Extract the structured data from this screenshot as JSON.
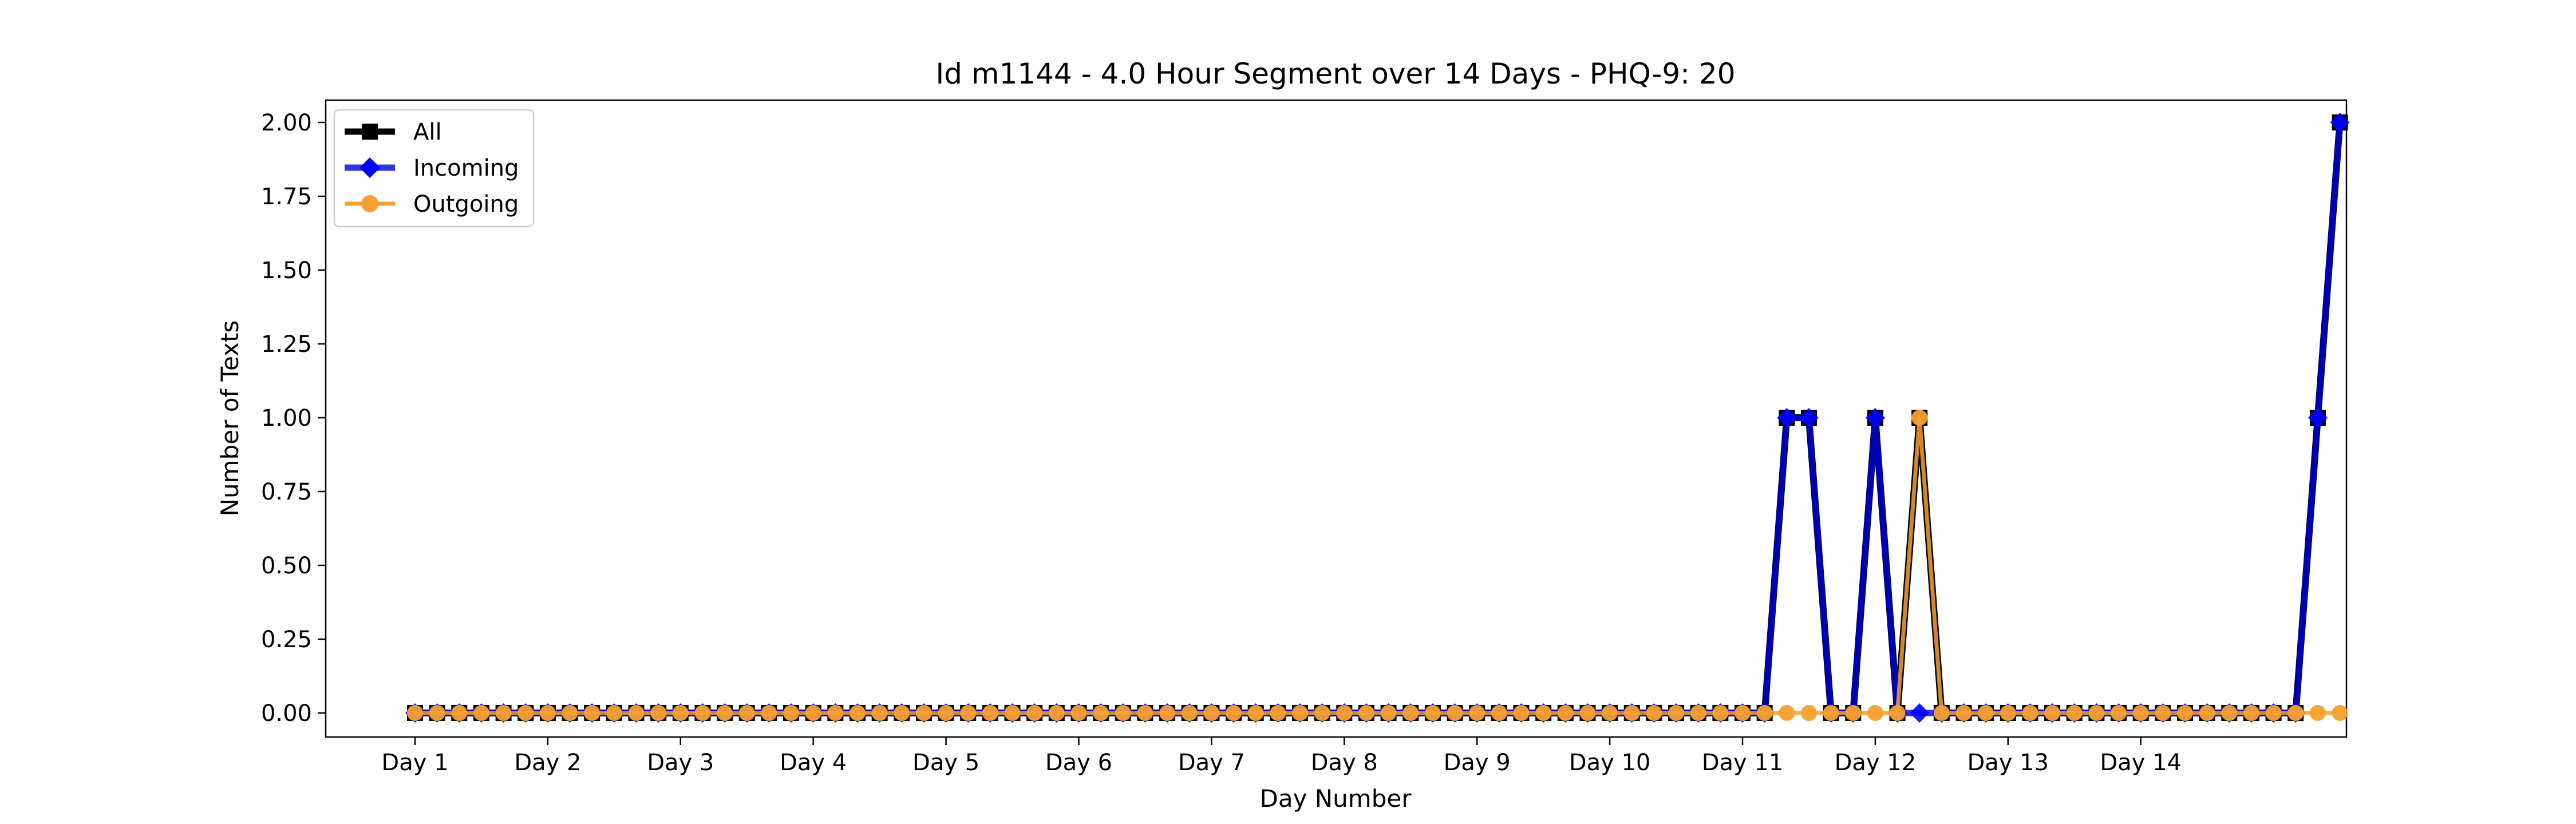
{
  "chart_data": {
    "type": "line",
    "title": "Id m1144 - 4.0 Hour Segment over 14 Days - PHQ-9: 20",
    "xlabel": "Day Number",
    "ylabel": "Number of Texts",
    "ylim": [
      -0.1,
      2.1
    ],
    "yticks": [
      "0.00",
      "0.25",
      "0.50",
      "0.75",
      "1.00",
      "1.25",
      "1.50",
      "1.75",
      "2.00"
    ],
    "xtick_labels": [
      "Day 1",
      "Day 2",
      "Day 3",
      "Day 4",
      "Day 5",
      "Day 6",
      "Day 7",
      "Day 8",
      "Day 9",
      "Day 10",
      "Day 11",
      "Day 12",
      "Day 13",
      "Day 14"
    ],
    "segments_per_day": 6,
    "legend_position": "upper-left",
    "grid": false,
    "series": [
      {
        "name": "All",
        "color": "#000000",
        "marker": "square",
        "values": [
          0,
          0,
          0,
          0,
          0,
          0,
          0,
          0,
          0,
          0,
          0,
          0,
          0,
          0,
          0,
          0,
          0,
          0,
          0,
          0,
          0,
          0,
          0,
          0,
          0,
          0,
          0,
          0,
          0,
          0,
          0,
          0,
          0,
          0,
          0,
          0,
          0,
          0,
          0,
          0,
          0,
          0,
          0,
          0,
          0,
          0,
          0,
          0,
          0,
          0,
          0,
          0,
          0,
          0,
          0,
          0,
          0,
          0,
          0,
          0,
          0,
          0,
          1,
          1,
          0,
          0,
          1,
          0,
          1,
          0,
          0,
          0,
          0,
          0,
          0,
          0,
          0,
          0,
          0,
          0,
          0,
          0,
          0,
          0,
          0,
          0,
          1,
          2
        ]
      },
      {
        "name": "Incoming",
        "color": "#0000dd",
        "marker": "diamond",
        "values": [
          0,
          0,
          0,
          0,
          0,
          0,
          0,
          0,
          0,
          0,
          0,
          0,
          0,
          0,
          0,
          0,
          0,
          0,
          0,
          0,
          0,
          0,
          0,
          0,
          0,
          0,
          0,
          0,
          0,
          0,
          0,
          0,
          0,
          0,
          0,
          0,
          0,
          0,
          0,
          0,
          0,
          0,
          0,
          0,
          0,
          0,
          0,
          0,
          0,
          0,
          0,
          0,
          0,
          0,
          0,
          0,
          0,
          0,
          0,
          0,
          0,
          0,
          1,
          1,
          0,
          0,
          1,
          0,
          0,
          0,
          0,
          0,
          0,
          0,
          0,
          0,
          0,
          0,
          0,
          0,
          0,
          0,
          0,
          0,
          0,
          0,
          1,
          2
        ]
      },
      {
        "name": "Outgoing",
        "color": "#f5a030",
        "marker": "circle",
        "values": [
          0,
          0,
          0,
          0,
          0,
          0,
          0,
          0,
          0,
          0,
          0,
          0,
          0,
          0,
          0,
          0,
          0,
          0,
          0,
          0,
          0,
          0,
          0,
          0,
          0,
          0,
          0,
          0,
          0,
          0,
          0,
          0,
          0,
          0,
          0,
          0,
          0,
          0,
          0,
          0,
          0,
          0,
          0,
          0,
          0,
          0,
          0,
          0,
          0,
          0,
          0,
          0,
          0,
          0,
          0,
          0,
          0,
          0,
          0,
          0,
          0,
          0,
          0,
          0,
          0,
          0,
          0,
          0,
          1,
          0,
          0,
          0,
          0,
          0,
          0,
          0,
          0,
          0,
          0,
          0,
          0,
          0,
          0,
          0,
          0,
          0,
          0,
          0
        ]
      }
    ]
  }
}
